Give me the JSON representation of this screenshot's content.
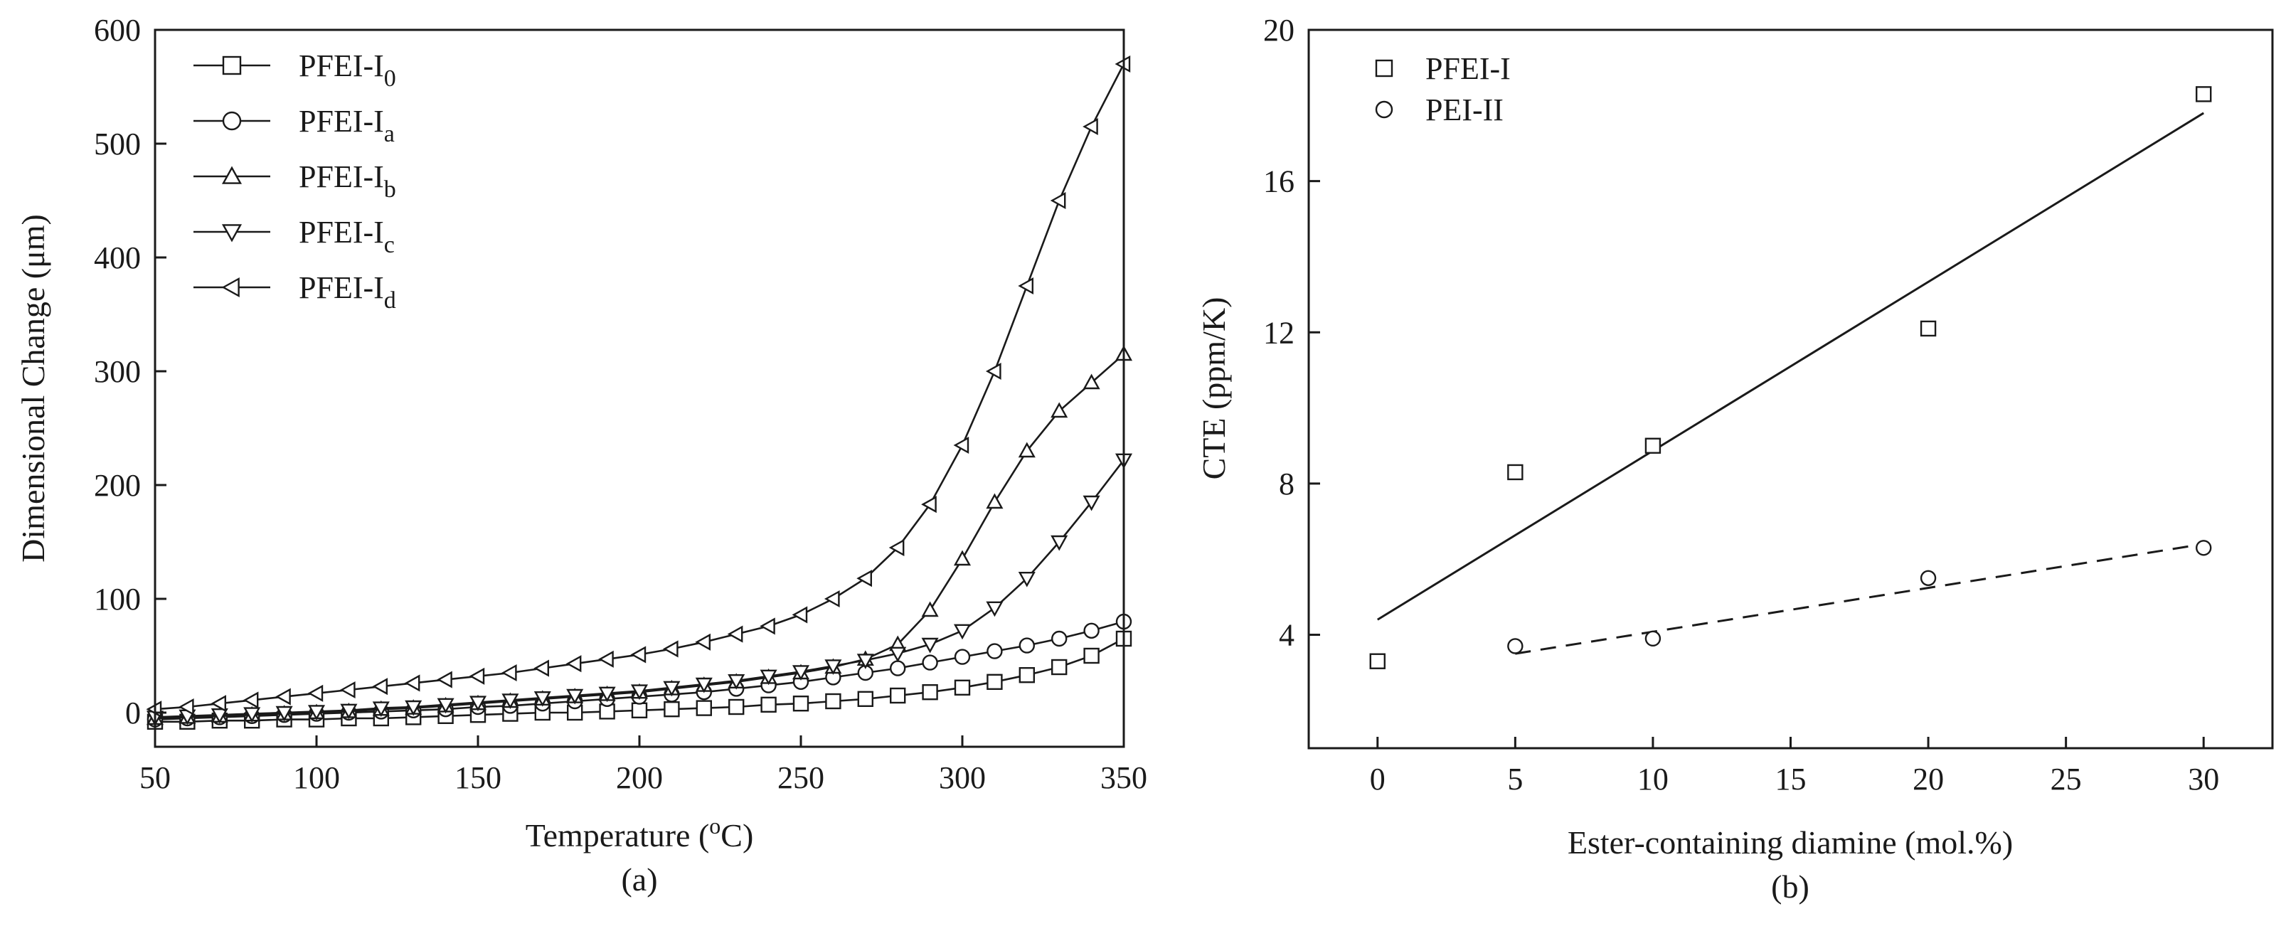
{
  "chart_data": [
    {
      "type": "line",
      "panel_label": "(a)",
      "xlabel": "Temperature (",
      "xlabel_sup": "o",
      "xlabel_tail": "C)",
      "ylabel": "Dimensional Change (μm)",
      "xlim": [
        50,
        350
      ],
      "ylim": [
        -30,
        600
      ],
      "xticks": [
        50,
        100,
        150,
        200,
        250,
        300,
        350
      ],
      "yticks": [
        0,
        100,
        200,
        300,
        400,
        500,
        600
      ],
      "legend_position": "top-left",
      "x": [
        50,
        60,
        70,
        80,
        90,
        100,
        110,
        120,
        130,
        140,
        150,
        160,
        170,
        180,
        190,
        200,
        210,
        220,
        230,
        240,
        250,
        260,
        270,
        280,
        290,
        300,
        310,
        320,
        330,
        340,
        350
      ],
      "series": [
        {
          "name": "PFEI-I",
          "sub": "0",
          "marker": "square",
          "values": [
            -8,
            -8,
            -7,
            -7,
            -6,
            -6,
            -5,
            -5,
            -4,
            -3,
            -2,
            -1,
            0,
            0,
            1,
            2,
            3,
            4,
            5,
            7,
            8,
            10,
            12,
            15,
            18,
            22,
            27,
            33,
            40,
            50,
            65
          ]
        },
        {
          "name": "PFEI-I",
          "sub": "a",
          "marker": "circle",
          "values": [
            -6,
            -5,
            -4,
            -3,
            -2,
            -1,
            0,
            1,
            2,
            3,
            5,
            6,
            8,
            10,
            12,
            14,
            16,
            18,
            21,
            24,
            27,
            31,
            35,
            39,
            44,
            49,
            54,
            59,
            65,
            72,
            80
          ]
        },
        {
          "name": "PFEI-I",
          "sub": "b",
          "marker": "triangle-up",
          "values": [
            -5,
            -4,
            -3,
            -2,
            -1,
            0,
            1,
            3,
            4,
            6,
            8,
            10,
            12,
            14,
            16,
            18,
            21,
            24,
            27,
            31,
            35,
            40,
            47,
            60,
            90,
            135,
            185,
            230,
            265,
            290,
            315
          ]
        },
        {
          "name": "PFEI-I",
          "sub": "c",
          "marker": "triangle-down",
          "values": [
            -4,
            -3,
            -2,
            -1,
            0,
            1,
            2,
            4,
            5,
            7,
            9,
            11,
            13,
            15,
            17,
            19,
            22,
            25,
            28,
            32,
            36,
            41,
            46,
            52,
            60,
            72,
            92,
            118,
            150,
            185,
            222
          ]
        },
        {
          "name": "PFEI-I",
          "sub": "d",
          "marker": "triangle-left",
          "values": [
            3,
            5,
            8,
            11,
            14,
            17,
            20,
            23,
            26,
            29,
            32,
            35,
            39,
            43,
            47,
            51,
            56,
            62,
            69,
            76,
            86,
            100,
            118,
            145,
            183,
            235,
            300,
            375,
            450,
            515,
            570
          ]
        }
      ]
    },
    {
      "type": "scatter",
      "panel_label": "(b)",
      "xlabel": "Ester-containing diamine (mol.%)",
      "ylabel": "CTE (ppm/K)",
      "xlim": [
        -2.5,
        32.5
      ],
      "ylim": [
        1,
        20
      ],
      "xticks": [
        0,
        5,
        10,
        15,
        20,
        25,
        30
      ],
      "yticks": [
        4,
        8,
        12,
        16,
        20
      ],
      "legend_position": "top-left",
      "series": [
        {
          "name": "PFEI-I",
          "marker": "square",
          "x": [
            0,
            5,
            10,
            20,
            30
          ],
          "values": [
            3.3,
            8.3,
            9.0,
            12.1,
            18.3
          ],
          "fit": {
            "x": [
              0,
              30
            ],
            "y": [
              4.4,
              17.8
            ],
            "style": "solid"
          }
        },
        {
          "name": "PEI-II",
          "marker": "circle",
          "x": [
            5,
            10,
            20,
            30
          ],
          "values": [
            3.7,
            3.9,
            5.5,
            6.3
          ],
          "fit": {
            "x": [
              5,
              30
            ],
            "y": [
              3.5,
              6.4
            ],
            "style": "dashed"
          }
        }
      ]
    }
  ]
}
